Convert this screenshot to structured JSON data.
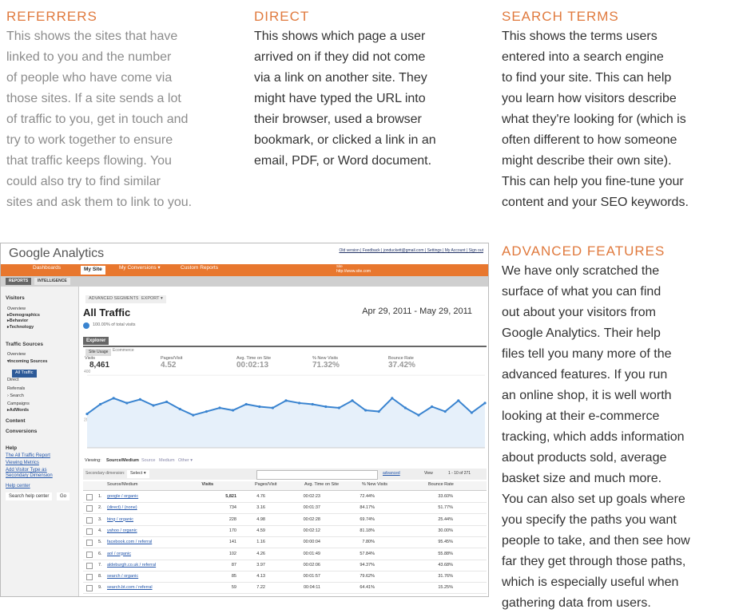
{
  "sections": [
    {
      "heading": "REFERRERS",
      "lines": [
        "This shows the sites that have",
        "linked to you and the number",
        "of people who have come via",
        "those sites. If a site sends a lot",
        "of traffic to you, get in touch and",
        "try to work together to ensure",
        "that traffic keeps flowing. You",
        "could also try to find similar",
        "sites and ask them to link to you."
      ]
    },
    {
      "heading": "DIRECT",
      "lines": [
        "This shows which page a user",
        "arrived on if they did not come",
        "via a link on another site. They",
        "might have typed the URL into",
        "their browser, used a browser",
        "bookmark, or clicked a link in an",
        "email, PDF, or Word document."
      ]
    },
    {
      "heading": "SEARCH TERMS",
      "lines": [
        "This shows the terms users",
        "entered into a search engine",
        "to find your site. This can help",
        "you learn how visitors describe",
        "what they're looking for (which is",
        "often different to how someone",
        "might describe their own site).",
        "This can help you fine-tune your",
        "content and your SEO keywords."
      ]
    },
    {
      "heading": "ADVANCED FEATURES",
      "lines": [
        "We have only scratched the",
        "surface of what you can find",
        "out about your visitors from",
        "Google Analytics. Their help",
        "files tell you many more of the",
        "advanced features. If you run",
        "an online shop, it is well worth",
        "looking at their e-commerce",
        "tracking, which adds information",
        "about products sold, average",
        "basket size and much more.",
        "You can also set up goals where",
        "you specify the paths you want",
        "people to take, and then see how",
        "far they get through those paths,",
        "which is especially useful when",
        "gathering data from users."
      ]
    }
  ],
  "screenshot": {
    "logo": "Google Analytics",
    "top_links": "Old version | Feedback | jonduckett@gmail.com | Settings | My Account | Sign out",
    "nav": [
      "Dashboards",
      "My Site",
      "My Conversions ▾",
      "Custom Reports"
    ],
    "site_label": "Site",
    "site_url": "http://www.site.com",
    "subnav": [
      "REPORTS",
      "INTELLIGENCE"
    ],
    "sidebar": [
      "Visitors",
      "Overview",
      "▸Demographics",
      "▸Behavior",
      "▸Technology",
      "Traffic Sources",
      "Overview",
      "▾Incoming Sources",
      "All Traffic",
      "Direct",
      "Referrals",
      "› Search",
      "Campaigns",
      "▸AdWords",
      "Content",
      "Conversions"
    ],
    "help": [
      "Help",
      "The All Traffic Report",
      "Viewing Metrics",
      "Add Visitor Type as",
      "Secondary Dimension",
      "Help center",
      "Search help center",
      "Go"
    ],
    "toolbar": [
      "ADVANCED SEGMENTS ▾",
      "EXPORT ▾"
    ],
    "title": "All Traffic",
    "date_range": "Apr 29, 2011 - May 29, 2011",
    "share": "100.00% of total visits",
    "tab": "Explorer",
    "subtabs": [
      "Site Usage",
      "Ecommerce"
    ],
    "metrics": [
      {
        "label": "Visits",
        "value": "8,461"
      },
      {
        "label": "Pages/Visit",
        "value": "4.52"
      },
      {
        "label": "Avg. Time on Site",
        "value": "00:02:13"
      },
      {
        "label": "% New Visits",
        "value": "71.32%"
      },
      {
        "label": "Bounce Rate",
        "value": "37.42%"
      }
    ],
    "trend": {
      "type": "line",
      "color": "#3a84d0",
      "ylim": [
        100,
        430
      ],
      "yticks": [
        400,
        200
      ],
      "values": [
        240,
        280,
        305,
        285,
        300,
        275,
        290,
        260,
        235,
        250,
        265,
        255,
        280,
        270,
        265,
        295,
        285,
        280,
        270,
        265,
        295,
        255,
        250,
        305,
        265,
        235,
        270,
        250,
        295,
        245,
        285
      ]
    },
    "viewing": [
      "Viewing:",
      "Source/Medium",
      "Source",
      "Medium",
      "Other ▾"
    ],
    "secondary": [
      "Secondary dimension:",
      "Select ▾"
    ],
    "search_tools": [
      "advanced",
      "View",
      "1 - 10 of 271"
    ],
    "table": {
      "header": [
        "Source/Medium",
        "Visits",
        "Pages/Visit",
        "Avg. Time on Site",
        "% New Visits",
        "Bounce Rate"
      ],
      "rows": [
        [
          "1.",
          "google / organic",
          "5,821",
          "4.76",
          "00:02:23",
          "72.44%",
          "33.60%"
        ],
        [
          "2.",
          "(direct) / (none)",
          "734",
          "3.16",
          "00:01:37",
          "84.17%",
          "51.77%"
        ],
        [
          "3.",
          "bing / organic",
          "228",
          "4.98",
          "00:02:28",
          "69.74%",
          "25.44%"
        ],
        [
          "4.",
          "yahoo / organic",
          "170",
          "4.59",
          "00:02:12",
          "81.18%",
          "30.00%"
        ],
        [
          "5.",
          "facebook.com / referral",
          "141",
          "1.16",
          "00:00:04",
          "7.80%",
          "95.45%"
        ],
        [
          "6.",
          "aol / organic",
          "102",
          "4.26",
          "00:01:49",
          "57.84%",
          "55.88%"
        ],
        [
          "7.",
          "aldeburgh.co.uk / referral",
          "87",
          "3.97",
          "00:02:06",
          "94.37%",
          "43.68%"
        ],
        [
          "8.",
          "search / organic",
          "85",
          "4.13",
          "00:01:57",
          "79.62%",
          "31.76%"
        ],
        [
          "9.",
          "search.bt.com / referral",
          "59",
          "7.22",
          "00:04:11",
          "64.41%",
          "15.25%"
        ]
      ]
    }
  }
}
